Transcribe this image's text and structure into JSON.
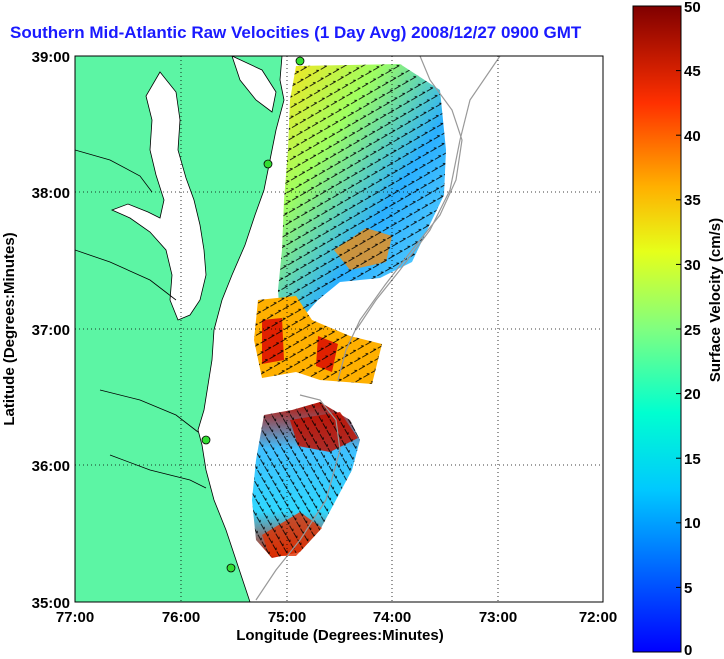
{
  "title": "Southern Mid-Atlantic Raw Velocities (1 Day Avg) 2008/12/27 0900 GMT",
  "x_axis": {
    "label": "Longitude (Degrees:Minutes)",
    "ticks": [
      "77:00",
      "76:00",
      "75:00",
      "74:00",
      "73:00",
      "72:00"
    ]
  },
  "y_axis": {
    "label": "Latitude (Degrees:Minutes)",
    "ticks": [
      "39:00",
      "38:00",
      "37:00",
      "36:00",
      "35:00"
    ]
  },
  "colorbar": {
    "label": "Surface Velocity (cm/s)",
    "ticks": [
      "50",
      "45",
      "40",
      "35",
      "30",
      "25",
      "20",
      "15",
      "10",
      "5",
      "0"
    ],
    "range": [
      0,
      50
    ],
    "colormap": "jet"
  },
  "colors": {
    "land": "#5cf5a4",
    "title": "#1a1aff",
    "station": "#33dd33"
  },
  "extent": {
    "lon": [
      -77,
      -72
    ],
    "lat": [
      35,
      39
    ]
  }
}
